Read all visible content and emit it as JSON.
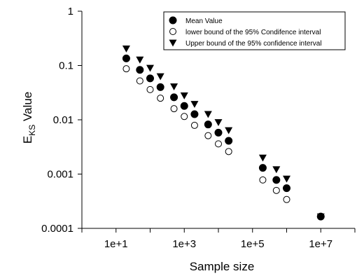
{
  "chart_data": {
    "type": "scatter",
    "title": "",
    "xlabel": "Sample size",
    "ylabel_main": "E",
    "ylabel_sub": "KS",
    "ylabel_rest": " Value",
    "xscale": "log",
    "yscale": "log",
    "xlim": [
      1,
      100000000
    ],
    "ylim": [
      0.0001,
      1
    ],
    "x_ticks": [
      {
        "value": 10,
        "label": "1e+1"
      },
      {
        "value": 1000,
        "label": "1e+3"
      },
      {
        "value": 100000,
        "label": "1e+5"
      },
      {
        "value": 10000000,
        "label": "1e+7"
      }
    ],
    "y_ticks": [
      {
        "value": 0.0001,
        "label": "0.0001"
      },
      {
        "value": 0.001,
        "label": "0.001"
      },
      {
        "value": 0.01,
        "label": "0.01"
      },
      {
        "value": 0.1,
        "label": "0.1"
      },
      {
        "value": 1,
        "label": "1"
      }
    ],
    "legend_position": "top-right",
    "grid": false,
    "series": [
      {
        "name": "Mean Value",
        "marker": "filled-circle",
        "points": [
          [
            20,
            0.135
          ],
          [
            50,
            0.083
          ],
          [
            100,
            0.058
          ],
          [
            200,
            0.04
          ],
          [
            500,
            0.026
          ],
          [
            1000,
            0.018
          ],
          [
            2000,
            0.0127
          ],
          [
            5000,
            0.0082
          ],
          [
            10000,
            0.0058
          ],
          [
            20000,
            0.0041
          ],
          [
            200000,
            0.0013
          ],
          [
            500000,
            0.00078
          ],
          [
            1000000,
            0.00055
          ],
          [
            10000000,
            0.000165
          ]
        ]
      },
      {
        "name": "lower bound of the 95% Condifence interval",
        "marker": "open-circle",
        "points": [
          [
            20,
            0.087
          ],
          [
            50,
            0.052
          ],
          [
            100,
            0.036
          ],
          [
            200,
            0.025
          ],
          [
            500,
            0.016
          ],
          [
            1000,
            0.0115
          ],
          [
            2000,
            0.0079
          ],
          [
            5000,
            0.0051
          ],
          [
            10000,
            0.0036
          ],
          [
            20000,
            0.0026
          ],
          [
            200000,
            0.00078
          ],
          [
            500000,
            0.0005
          ],
          [
            1000000,
            0.00034
          ],
          [
            10000000,
            0.000165
          ]
        ]
      },
      {
        "name": "Upper bound of the 95% confidence interval",
        "marker": "filled-triangle-down",
        "points": [
          [
            20,
            0.205
          ],
          [
            50,
            0.128
          ],
          [
            100,
            0.09
          ],
          [
            200,
            0.063
          ],
          [
            500,
            0.041
          ],
          [
            1000,
            0.028
          ],
          [
            2000,
            0.0195
          ],
          [
            5000,
            0.0127
          ],
          [
            10000,
            0.009
          ],
          [
            20000,
            0.0064
          ],
          [
            200000,
            0.002
          ],
          [
            500000,
            0.00122
          ],
          [
            1000000,
            0.00082
          ],
          [
            10000000,
            0.000165
          ]
        ]
      }
    ]
  }
}
